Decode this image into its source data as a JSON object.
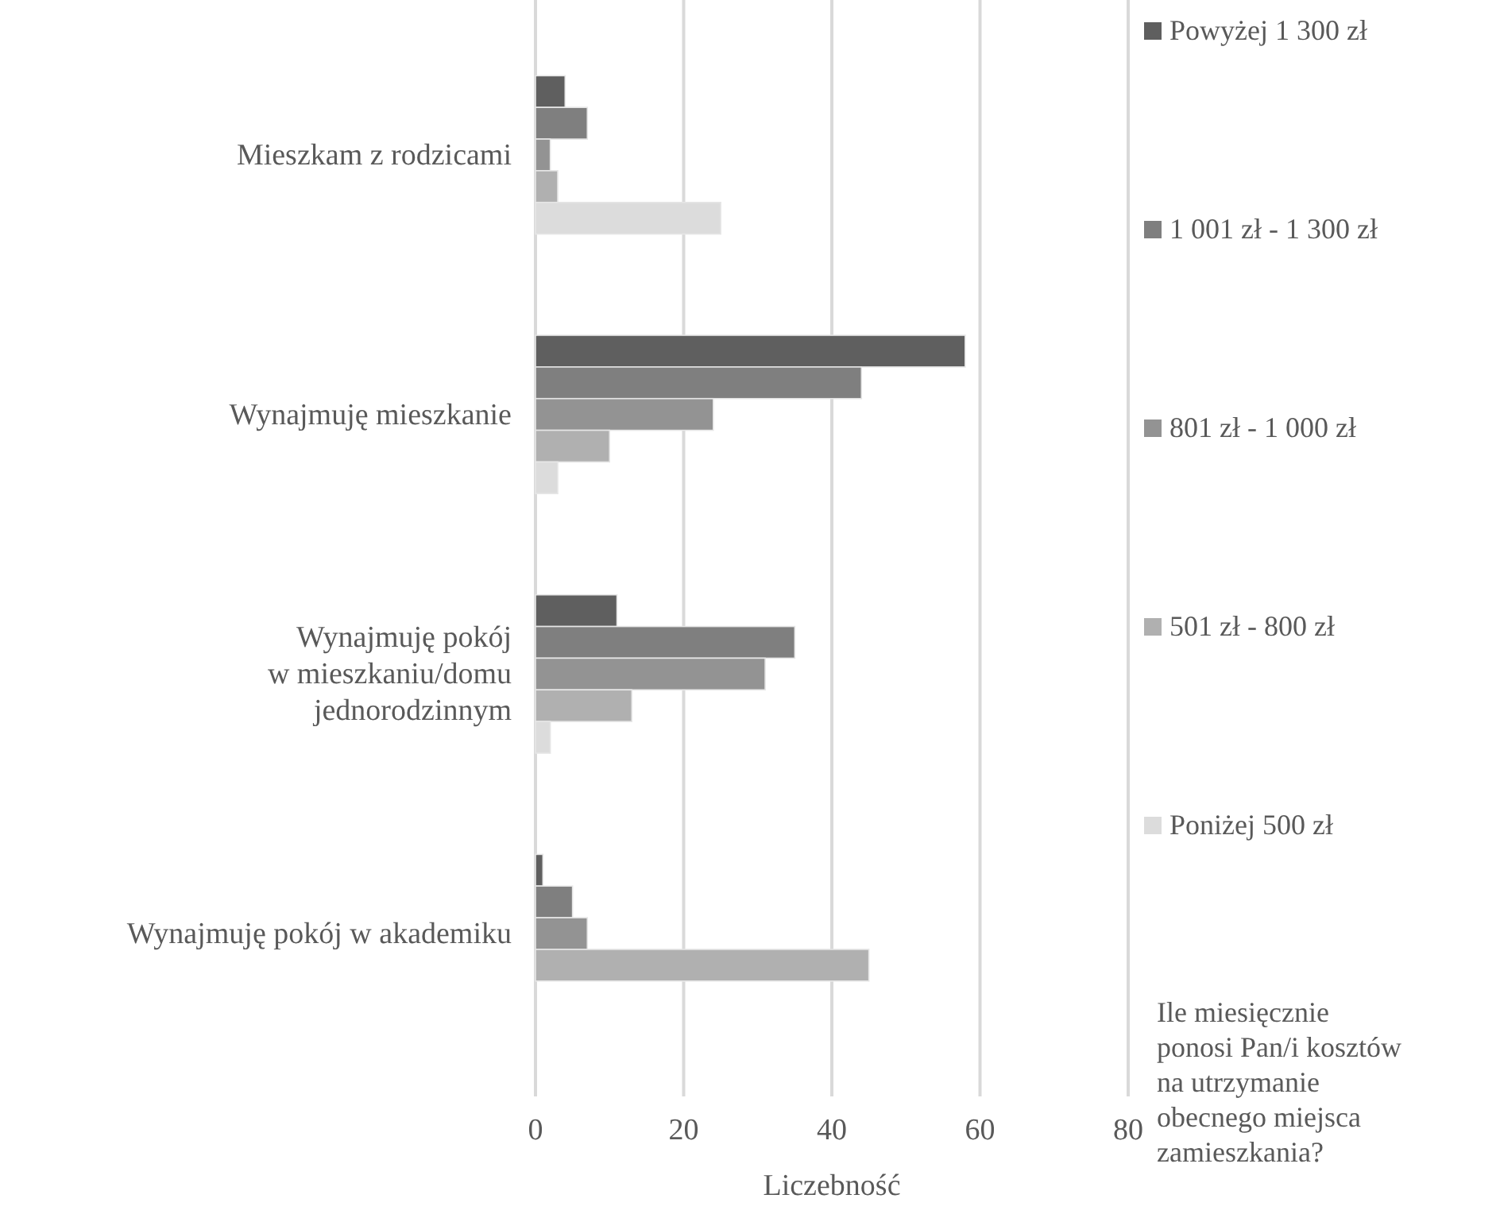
{
  "chart_data": {
    "type": "bar",
    "orientation": "horizontal",
    "xlabel": "Liczebność",
    "legend_title": "Ile miesięcznie ponosi Pan/i kosztów na utrzymanie obecnego miejsca zamieszkania?",
    "categories": [
      "Mieszkam z rodzicami",
      "Wynajmuję mieszkanie",
      "Wynajmuję pokój w mieszkaniu/domu jednorodzinnym",
      "Wynajmuję pokój w akademiku"
    ],
    "series": [
      {
        "name": "Powyżej 1 300 zł",
        "color": "#5f5f5f",
        "values": [
          4,
          58,
          11,
          1
        ]
      },
      {
        "name": "1 001 zł - 1 300 zł",
        "color": "#7f7f7f",
        "values": [
          7,
          44,
          35,
          5
        ]
      },
      {
        "name": "801 zł - 1 000 zł",
        "color": "#939393",
        "values": [
          2,
          24,
          31,
          7
        ]
      },
      {
        "name": "501 zł - 800 zł",
        "color": "#b0b0b0",
        "values": [
          3,
          10,
          13,
          45
        ]
      },
      {
        "name": "Poniżej 500 zł",
        "color": "#dcdcdc",
        "values": [
          25,
          3,
          2,
          0
        ]
      }
    ],
    "xlim": [
      0,
      80
    ],
    "xticks": [
      0,
      20,
      40,
      60,
      80
    ],
    "grid": "x",
    "legend": "right"
  }
}
